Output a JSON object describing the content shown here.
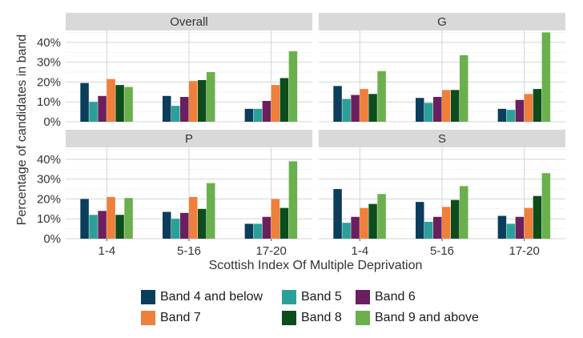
{
  "chart_data": {
    "type": "bar",
    "ylabel": "Percentage of candidates in band",
    "xlabel": "Scottish Index Of Multiple Deprivation",
    "categories": [
      "1-4",
      "5-16",
      "17-20"
    ],
    "y_ticks": [
      "0%",
      "10%",
      "20%",
      "30%",
      "40%"
    ],
    "ylim": [
      0,
      46
    ],
    "grid": true,
    "legend_position": "bottom",
    "series": [
      {
        "name": "Band 4 and below",
        "color": "#0b3d5c"
      },
      {
        "name": "Band 5",
        "color": "#2aa198"
      },
      {
        "name": "Band 6",
        "color": "#6b1f5e"
      },
      {
        "name": "Band 7",
        "color": "#f07f3c"
      },
      {
        "name": "Band 8",
        "color": "#0d4d1c"
      },
      {
        "name": "Band 9 and above",
        "color": "#6ab04c"
      }
    ],
    "panels": [
      {
        "title": "Overall",
        "values": [
          [
            19.5,
            10,
            13,
            21.5,
            18.5,
            17.5
          ],
          [
            13,
            8,
            12.5,
            20.5,
            21,
            25
          ],
          [
            6.5,
            6.5,
            10.5,
            18.5,
            22,
            35.5
          ]
        ]
      },
      {
        "title": "G",
        "values": [
          [
            18,
            11.5,
            13.5,
            16.5,
            14,
            25.5
          ],
          [
            12,
            9.5,
            12.5,
            16,
            16,
            33.5
          ],
          [
            6.5,
            6,
            11,
            14,
            16.5,
            45
          ]
        ]
      },
      {
        "title": "P",
        "values": [
          [
            20,
            12,
            14,
            21,
            12,
            20.5
          ],
          [
            13.5,
            10,
            13,
            21,
            15,
            28
          ],
          [
            7.5,
            7.5,
            11,
            20,
            15.5,
            39
          ]
        ]
      },
      {
        "title": "S",
        "values": [
          [
            25,
            8,
            11,
            15.5,
            17.5,
            22.5
          ],
          [
            18.5,
            8.5,
            11,
            16,
            19.5,
            26.5
          ],
          [
            11.5,
            7.5,
            11,
            15.5,
            21.5,
            33
          ]
        ]
      }
    ]
  }
}
